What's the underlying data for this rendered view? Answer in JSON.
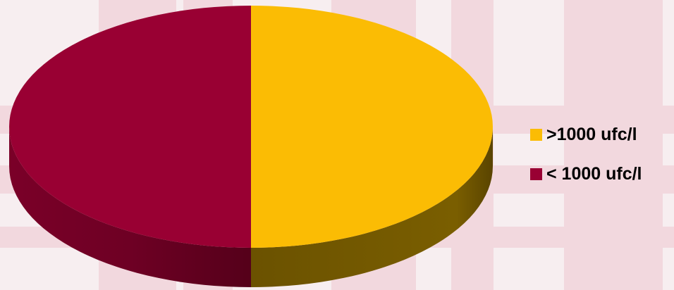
{
  "chart_data": {
    "type": "pie",
    "style": "3d",
    "categories": [
      ">1000 ufc/l",
      "< 1000 ufc/l"
    ],
    "values": [
      50,
      50
    ],
    "colors": [
      "#fbbc04",
      "#990033"
    ],
    "side_colors": [
      "#6b5200",
      "#5c0020"
    ],
    "legend_position": "right"
  },
  "legend": {
    "items": [
      {
        "label": ">1000 ufc/l",
        "color": "#fbbc04"
      },
      {
        "label": "< 1000 ufc/l",
        "color": "#990033"
      }
    ]
  },
  "background": {
    "base_color": "#f7eef0",
    "stripe_color": "#f2d8de"
  }
}
